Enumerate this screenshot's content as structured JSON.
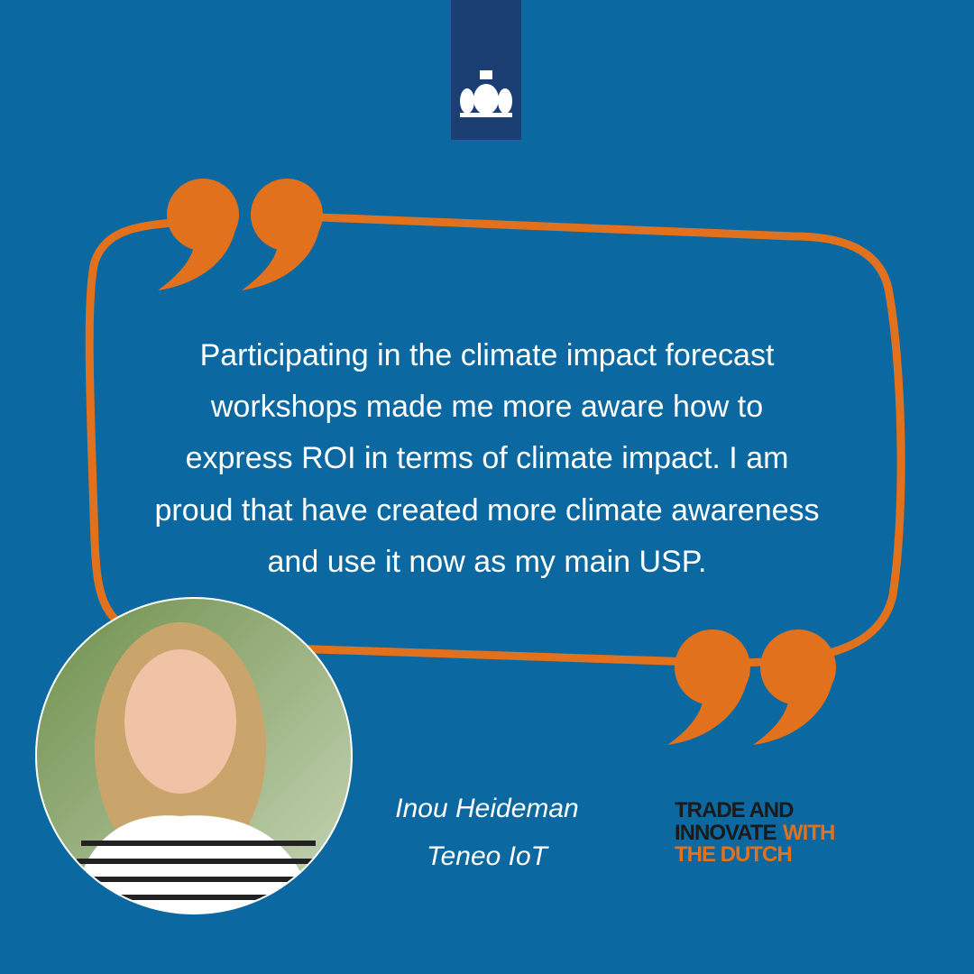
{
  "quote": {
    "lines": [
      "Participating in the climate impact forecast",
      "workshops made me more aware how to",
      "express ROI in terms of climate impact. I am",
      "proud that have created more climate awareness",
      "and use it now as my main USP."
    ]
  },
  "person": {
    "name": "Inou Heideman",
    "company": "Teneo IoT"
  },
  "logo": {
    "line1": "TRADE AND",
    "line2a": "INNOVATE",
    "line2b": "WITH",
    "line3": "THE DUTCH"
  }
}
